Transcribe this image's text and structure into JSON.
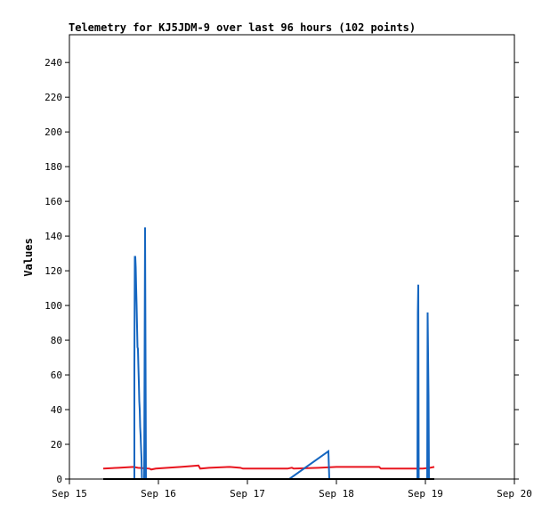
{
  "chart_data": {
    "type": "line",
    "title": "Telemetry for KJ5JDM-9 over last 96 hours (102 points)",
    "xlabel": "",
    "ylabel": "Values",
    "x_ticks": [
      "Sep 15",
      "Sep 16",
      "Sep 17",
      "Sep 18",
      "Sep 19",
      "Sep 20"
    ],
    "y_ticks": [
      0,
      20,
      40,
      60,
      80,
      100,
      120,
      140,
      160,
      180,
      200,
      220,
      240
    ],
    "xlim_days": [
      15,
      20
    ],
    "ylim": [
      0,
      256
    ],
    "grid": false,
    "colors": {
      "red": "#e8141e",
      "blue": "#1566c0",
      "black": "#000000"
    },
    "series": [
      {
        "color": "#e8141e",
        "points": [
          [
            15.38,
            6.0
          ],
          [
            15.55,
            6.5
          ],
          [
            15.72,
            7.0
          ],
          [
            15.77,
            6.5
          ],
          [
            15.9,
            6.0
          ],
          [
            15.92,
            5.5
          ],
          [
            15.97,
            6.0
          ],
          [
            16.1,
            6.5
          ],
          [
            16.25,
            7.0
          ],
          [
            16.38,
            7.5
          ],
          [
            16.45,
            7.8
          ],
          [
            16.47,
            6.0
          ],
          [
            16.57,
            6.5
          ],
          [
            16.8,
            7.0
          ],
          [
            16.92,
            6.5
          ],
          [
            16.95,
            6.0
          ],
          [
            17.1,
            6.0
          ],
          [
            17.45,
            6.0
          ],
          [
            17.5,
            6.5
          ],
          [
            17.52,
            6.0
          ],
          [
            17.8,
            6.5
          ],
          [
            18.0,
            7.0
          ],
          [
            18.48,
            7.0
          ],
          [
            18.5,
            6.0
          ],
          [
            18.97,
            6.0
          ],
          [
            19.05,
            6.5
          ],
          [
            19.1,
            7.0
          ]
        ]
      },
      {
        "color": "#1566c0",
        "points": [
          [
            15.73,
            0
          ],
          [
            15.73,
            65
          ],
          [
            15.735,
            128
          ],
          [
            15.74,
            128
          ],
          [
            15.745,
            122
          ],
          [
            15.75,
            110
          ],
          [
            15.755,
            100
          ],
          [
            15.76,
            88
          ],
          [
            15.765,
            76
          ],
          [
            15.77,
            75
          ],
          [
            15.775,
            65
          ],
          [
            15.78,
            56
          ],
          [
            15.785,
            45
          ],
          [
            15.79,
            40
          ],
          [
            15.795,
            30
          ],
          [
            15.8,
            25
          ],
          [
            15.805,
            18
          ],
          [
            15.81,
            12
          ],
          [
            15.815,
            0
          ],
          [
            15.84,
            0
          ],
          [
            15.85,
            145
          ],
          [
            15.86,
            0
          ],
          [
            17.47,
            0
          ],
          [
            17.91,
            16
          ],
          [
            17.92,
            0
          ],
          [
            18.91,
            0
          ],
          [
            18.915,
            96
          ],
          [
            18.92,
            112
          ],
          [
            18.925,
            0
          ],
          [
            19.02,
            0
          ],
          [
            19.025,
            96
          ],
          [
            19.035,
            48
          ],
          [
            19.04,
            0
          ]
        ]
      },
      {
        "color": "#000000",
        "points": [
          [
            15.38,
            0
          ],
          [
            19.1,
            0
          ]
        ]
      }
    ]
  }
}
